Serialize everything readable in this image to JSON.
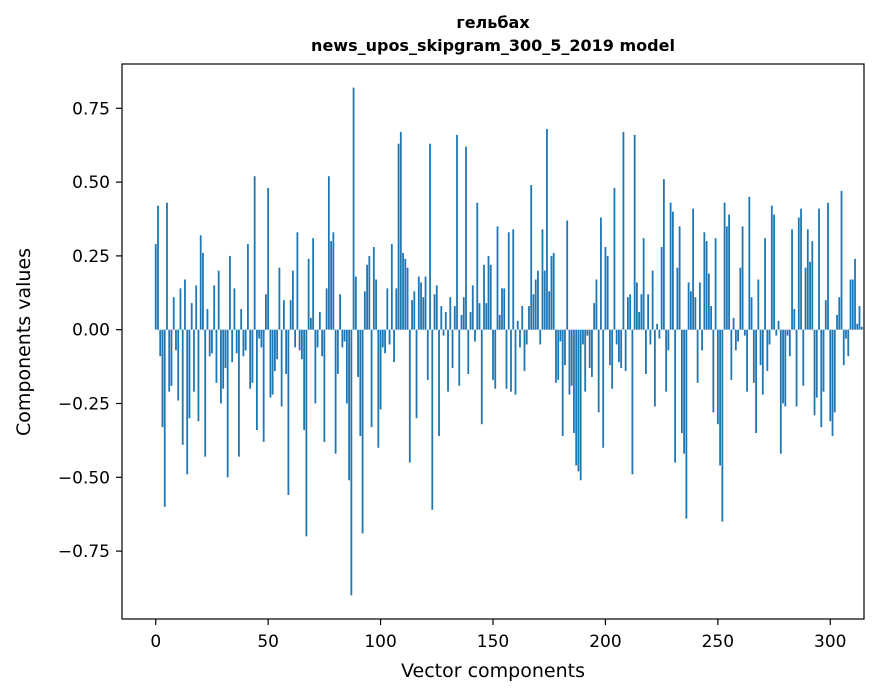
{
  "chart_data": {
    "type": "bar",
    "title": "гельбах",
    "subtitle": "news_upos_skipgram_300_5_2019 model",
    "xlabel": "Vector components",
    "ylabel": "Components values",
    "xlim": [
      -15,
      315
    ],
    "ylim": [
      -0.98,
      0.9
    ],
    "xticks": [
      0,
      50,
      100,
      150,
      200,
      250,
      300
    ],
    "yticks": [
      -0.75,
      -0.5,
      -0.25,
      0.0,
      0.25,
      0.5,
      0.75
    ],
    "ytick_labels": [
      "−0.75",
      "−0.50",
      "−0.25",
      "0.00",
      "0.25",
      "0.50",
      "0.75"
    ],
    "bar_color": "#1f77b4",
    "values": [
      0.29,
      0.42,
      -0.09,
      -0.33,
      -0.6,
      0.43,
      -0.21,
      -0.19,
      0.11,
      -0.07,
      -0.24,
      0.14,
      -0.39,
      0.17,
      -0.49,
      -0.3,
      0.09,
      -0.21,
      0.15,
      -0.31,
      0.32,
      0.26,
      -0.43,
      0.07,
      -0.09,
      -0.08,
      0.15,
      -0.18,
      0.2,
      -0.25,
      -0.2,
      -0.13,
      -0.5,
      0.25,
      -0.11,
      0.14,
      -0.08,
      -0.43,
      0.07,
      -0.09,
      -0.07,
      0.29,
      -0.2,
      -0.18,
      0.52,
      -0.34,
      -0.03,
      -0.06,
      -0.38,
      0.12,
      0.48,
      -0.23,
      -0.22,
      -0.14,
      -0.1,
      0.21,
      -0.26,
      0.1,
      -0.15,
      -0.56,
      0.1,
      0.2,
      -0.06,
      0.33,
      -0.07,
      -0.1,
      -0.34,
      -0.7,
      0.24,
      0.04,
      0.31,
      -0.25,
      -0.06,
      0.06,
      -0.09,
      -0.38,
      0.14,
      0.52,
      0.3,
      0.33,
      -0.42,
      -0.15,
      0.12,
      -0.06,
      -0.04,
      -0.25,
      -0.51,
      -0.9,
      0.82,
      0.18,
      -0.16,
      -0.36,
      -0.69,
      0.13,
      0.22,
      0.25,
      -0.33,
      0.28,
      0.17,
      -0.4,
      -0.27,
      -0.06,
      -0.08,
      0.14,
      -0.05,
      0.29,
      -0.11,
      0.14,
      0.63,
      0.67,
      0.26,
      0.24,
      0.21,
      -0.45,
      0.1,
      0.13,
      -0.3,
      0.18,
      0.16,
      0.11,
      0.18,
      -0.17,
      0.63,
      -0.61,
      0.12,
      0.15,
      -0.36,
      0.08,
      -0.02,
      0.06,
      -0.21,
      0.11,
      -0.13,
      0.08,
      0.66,
      -0.19,
      0.05,
      0.11,
      0.62,
      -0.15,
      0.06,
      0.15,
      -0.04,
      0.43,
      0.09,
      -0.32,
      0.22,
      0.09,
      0.25,
      0.22,
      -0.17,
      -0.2,
      0.35,
      0.05,
      0.14,
      0.14,
      -0.2,
      0.33,
      -0.21,
      0.34,
      -0.22,
      0.03,
      -0.06,
      0.08,
      -0.14,
      -0.05,
      0.08,
      0.49,
      0.12,
      0.17,
      0.2,
      -0.05,
      0.34,
      0.2,
      0.68,
      0.13,
      0.25,
      0.26,
      -0.18,
      -0.17,
      -0.04,
      -0.36,
      -0.12,
      0.37,
      -0.22,
      -0.19,
      -0.35,
      -0.46,
      -0.48,
      -0.51,
      -0.05,
      -0.21,
      -0.02,
      -0.13,
      -0.16,
      0.09,
      0.17,
      -0.28,
      0.38,
      -0.4,
      0.28,
      0.25,
      -0.12,
      -0.2,
      0.48,
      -0.05,
      -0.11,
      -0.13,
      0.67,
      -0.14,
      0.11,
      0.12,
      -0.49,
      0.66,
      0.16,
      0.06,
      0.12,
      0.31,
      -0.15,
      0.12,
      -0.05,
      0.2,
      -0.26,
      0.02,
      -0.03,
      0.28,
      0.51,
      -0.21,
      -0.07,
      0.43,
      0.4,
      -0.45,
      0.21,
      0.35,
      -0.35,
      -0.42,
      -0.64,
      0.16,
      0.13,
      0.41,
      0.11,
      -0.18,
      0.16,
      -0.07,
      0.33,
      0.3,
      0.19,
      0.08,
      -0.28,
      0.31,
      -0.32,
      -0.46,
      -0.65,
      0.43,
      0.35,
      0.39,
      -0.17,
      0.04,
      -0.07,
      -0.04,
      0.21,
      0.35,
      -0.02,
      -0.21,
      0.45,
      0.11,
      -0.18,
      -0.35,
      0.17,
      -0.12,
      -0.22,
      0.31,
      -0.14,
      -0.05,
      0.42,
      0.39,
      -0.02,
      0.03,
      -0.42,
      -0.25,
      -0.26,
      -0.02,
      -0.09,
      0.34,
      0.07,
      -0.26,
      0.38,
      0.41,
      -0.19,
      0.21,
      0.34,
      0.23,
      0.3,
      -0.29,
      -0.23,
      0.41,
      -0.33,
      -0.21,
      0.1,
      0.43,
      -0.31,
      -0.36,
      -0.28,
      0.05,
      0.11,
      0.47,
      -0.12,
      -0.03,
      -0.09,
      0.17,
      0.17,
      0.24,
      0.02,
      0.08,
      0.01
    ]
  }
}
